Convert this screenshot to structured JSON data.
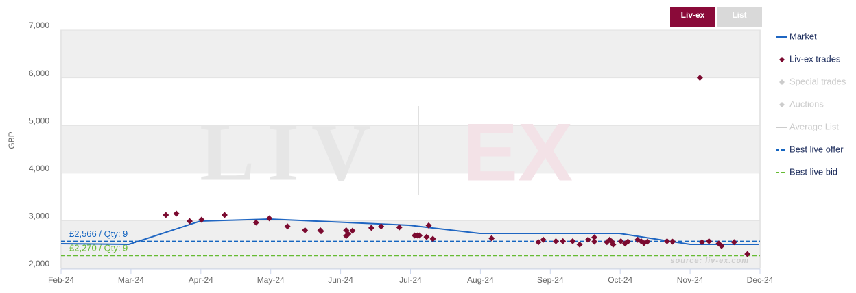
{
  "chart_data": {
    "type": "line",
    "y_label": "GBP",
    "buttons": [
      {
        "label": "Liv-ex",
        "active": true
      },
      {
        "label": "List",
        "active": false
      }
    ],
    "watermark": [
      "LIV",
      "EX"
    ],
    "source": "source: liv-ex.com",
    "xlim": [
      0,
      10
    ],
    "xticks": [
      {
        "value": 0,
        "label": "Feb-24"
      },
      {
        "value": 1,
        "label": "Mar-24"
      },
      {
        "value": 2,
        "label": "Apr-24"
      },
      {
        "value": 3,
        "label": "May-24"
      },
      {
        "value": 4,
        "label": "Jun-24"
      },
      {
        "value": 5,
        "label": "Jul-24"
      },
      {
        "value": 6,
        "label": "Aug-24"
      },
      {
        "value": 7,
        "label": "Sep-24"
      },
      {
        "value": 8,
        "label": "Oct-24"
      },
      {
        "value": 9,
        "label": "Nov-24"
      },
      {
        "value": 10,
        "label": "Dec-24"
      }
    ],
    "ylim": [
      2000,
      7000
    ],
    "yticks": [
      {
        "value": 2000,
        "label": "2,000"
      },
      {
        "value": 3000,
        "label": "3,000"
      },
      {
        "value": 4000,
        "label": "4,000"
      },
      {
        "value": 5000,
        "label": "5,000"
      },
      {
        "value": 6000,
        "label": "6,000"
      },
      {
        "value": 7000,
        "label": "7,000"
      }
    ],
    "series": [
      {
        "name": "Market",
        "type": "line",
        "color": "#1f66c2",
        "x": [
          0,
          0.97,
          1.99,
          2.98,
          4.98,
          5.99,
          7.99,
          9.0,
          9.98
        ],
        "values": [
          2517,
          2503,
          2991,
          3034,
          2905,
          2733,
          2733,
          2503,
          2503
        ]
      },
      {
        "name": "Liv-ex trades",
        "type": "scatter",
        "color": "#7b0a30",
        "x": [
          1.5,
          1.65,
          1.84,
          2.01,
          2.34,
          2.79,
          2.98,
          3.24,
          3.49,
          3.71,
          3.72,
          4.08,
          4.08,
          4.11,
          4.17,
          4.44,
          4.58,
          4.84,
          5.06,
          5.1,
          5.13,
          5.23,
          5.26,
          5.32,
          6.16,
          6.83,
          6.9,
          7.08,
          7.18,
          7.32,
          7.42,
          7.54,
          7.63,
          7.63,
          7.81,
          7.85,
          7.88,
          7.9,
          8.01,
          8.07,
          8.11,
          8.25,
          8.3,
          8.34,
          8.39,
          8.67,
          8.75,
          9.14,
          9.17,
          9.27,
          9.41,
          9.45,
          9.63,
          9.82
        ],
        "values": [
          3120,
          3150,
          2990,
          3020,
          3120,
          2960,
          3050,
          2880,
          2800,
          2800,
          2780,
          2800,
          2680,
          2720,
          2790,
          2850,
          2880,
          2860,
          2690,
          2690,
          2690,
          2660,
          2900,
          2620,
          2630,
          2550,
          2600,
          2570,
          2570,
          2570,
          2500,
          2600,
          2650,
          2560,
          2550,
          2600,
          2560,
          2500,
          2570,
          2520,
          2560,
          2600,
          2570,
          2530,
          2560,
          2570,
          2560,
          6000,
          2550,
          2570,
          2520,
          2470,
          2550,
          2300
        ]
      },
      {
        "name": "Special trades",
        "type": "scatter",
        "color": "#cccccc",
        "hidden": true
      },
      {
        "name": "Auctions",
        "type": "scatter",
        "color": "#cccccc",
        "hidden": true
      },
      {
        "name": "Average List",
        "type": "line",
        "color": "#cccccc",
        "hidden": true
      },
      {
        "name": "Best live offer",
        "type": "hline",
        "color": "#1565c0",
        "value": 2566,
        "label": "£2,566 / Qty: 9"
      },
      {
        "name": "Best live bid",
        "type": "hline",
        "color": "#66bb33",
        "value": 2270,
        "label": "£2,270 / Qty: 9"
      }
    ]
  }
}
